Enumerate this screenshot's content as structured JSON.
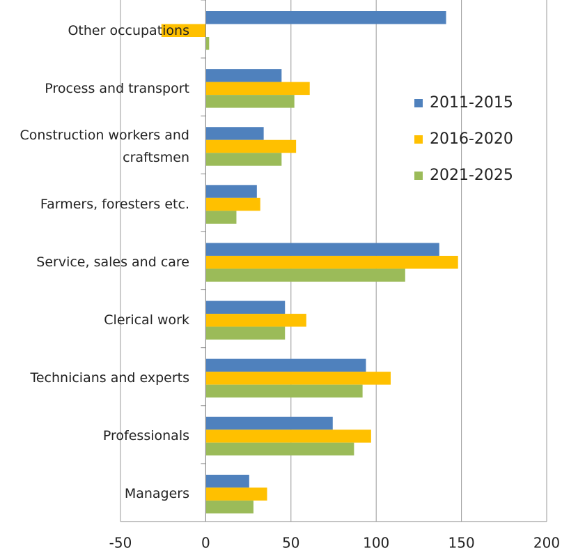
{
  "chart_data": {
    "type": "barh",
    "categories": [
      "Other occupations",
      "Process and transport",
      "Construction workers and craftsmen",
      "Farmers, foresters etc.",
      "Service, sales and care",
      "Clerical work",
      "Technicians and experts",
      "Professionals",
      "Managers"
    ],
    "series": [
      {
        "name": "2011-2015",
        "color": "#4f81bd",
        "values": [
          141,
          44.5,
          34,
          30,
          137,
          46.5,
          94,
          74.5,
          25.5
        ]
      },
      {
        "name": "2016-2020",
        "color": "#ffc000",
        "values": [
          -26,
          61,
          53,
          32,
          148,
          59,
          108.5,
          97,
          36
        ]
      },
      {
        "name": "2021-2025",
        "color": "#9bbb59",
        "values": [
          2,
          52,
          44.5,
          18,
          117,
          46.5,
          92,
          87,
          28
        ]
      }
    ],
    "xlim": [
      -50,
      200
    ],
    "xticks": [
      -50,
      0,
      50,
      100,
      150,
      200
    ],
    "grid": true,
    "legend": "right"
  }
}
